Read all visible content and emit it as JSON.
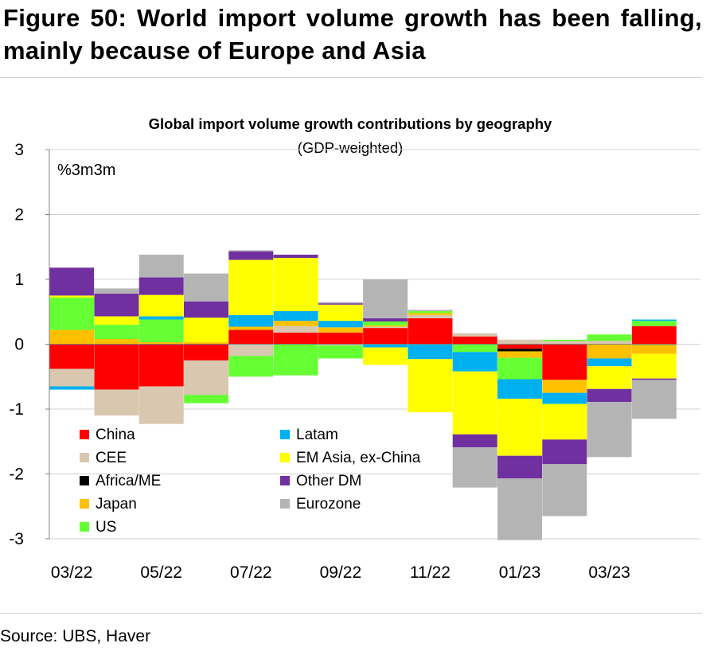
{
  "figure": {
    "title": "Figure 50: World import volume growth has been falling, mainly because of Europe and Asia",
    "source": "Source: UBS, Haver"
  },
  "chart_data": {
    "type": "bar",
    "stacked": true,
    "title": "Global import volume growth contributions by geography",
    "subtitle": "(GDP-weighted)",
    "unit_label": "%3m3m",
    "ylim": [
      -3,
      3
    ],
    "yticks": [
      3,
      2,
      1,
      0,
      -1,
      -2,
      -3
    ],
    "xtick_labels": [
      "03/22",
      "05/22",
      "07/22",
      "09/22",
      "11/22",
      "01/23",
      "03/23"
    ],
    "xtick_every": 2,
    "grid": true,
    "legend_position": "bottom-left",
    "categories": [
      "Mar 22",
      "Apr 22",
      "May 22",
      "Jun 22",
      "Jul 22",
      "Aug 22",
      "Sep 22",
      "Oct 22",
      "Nov 22",
      "Dec 22",
      "Jan 23",
      "Feb 23",
      "Mar 23",
      "Apr 23"
    ],
    "series": [
      {
        "name": "China",
        "color": "#ff0000",
        "values": [
          -0.38,
          -0.7,
          -0.65,
          -0.25,
          0.22,
          0.18,
          0.18,
          0.25,
          0.4,
          0.12,
          -0.07,
          -0.55,
          0.0,
          0.28
        ]
      },
      {
        "name": "CEE",
        "color": "#d9c7b0",
        "values": [
          -0.27,
          -0.4,
          -0.58,
          -0.53,
          -0.18,
          0.1,
          -0.02,
          0.02,
          0.05,
          0.05,
          0.07,
          0.05,
          0.05,
          0.0
        ]
      },
      {
        "name": "Africa/ME",
        "color": "#000000",
        "values": [
          0.0,
          0.0,
          0.0,
          0.0,
          0.0,
          0.0,
          0.0,
          0.0,
          0.0,
          0.0,
          -0.04,
          0.0,
          0.0,
          -0.01
        ]
      },
      {
        "name": "Japan",
        "color": "#ffc000",
        "values": [
          0.22,
          0.08,
          0.03,
          0.03,
          0.05,
          0.08,
          0.08,
          0.02,
          0.03,
          0.0,
          -0.1,
          -0.2,
          -0.22,
          -0.14
        ]
      },
      {
        "name": "US",
        "color": "#66ff33",
        "values": [
          0.5,
          0.22,
          0.35,
          -0.13,
          -0.32,
          -0.48,
          -0.2,
          0.06,
          0.03,
          -0.12,
          -0.33,
          0.02,
          0.1,
          0.08
        ]
      },
      {
        "name": "Latam",
        "color": "#00b0f0",
        "values": [
          -0.05,
          0.0,
          0.05,
          0.0,
          0.18,
          0.15,
          0.1,
          -0.05,
          -0.23,
          -0.3,
          -0.3,
          -0.17,
          -0.12,
          0.02
        ]
      },
      {
        "name": "EM Asia, ex-China",
        "color": "#ffff00",
        "values": [
          0.03,
          0.13,
          0.33,
          0.38,
          0.85,
          0.82,
          0.25,
          -0.27,
          -0.82,
          -0.97,
          -0.88,
          -0.55,
          -0.35,
          -0.38
        ]
      },
      {
        "name": "Other DM",
        "color": "#7030a0",
        "values": [
          0.43,
          0.35,
          0.27,
          0.25,
          0.13,
          0.05,
          0.02,
          0.05,
          0.0,
          -0.2,
          -0.35,
          -0.38,
          -0.2,
          -0.02
        ]
      },
      {
        "name": "Eurozone",
        "color": "#b4b4b4",
        "values": [
          0.0,
          0.08,
          0.35,
          0.43,
          0.02,
          0.0,
          0.02,
          0.6,
          0.02,
          -0.62,
          -0.95,
          -0.8,
          -0.85,
          -0.6
        ]
      }
    ]
  }
}
